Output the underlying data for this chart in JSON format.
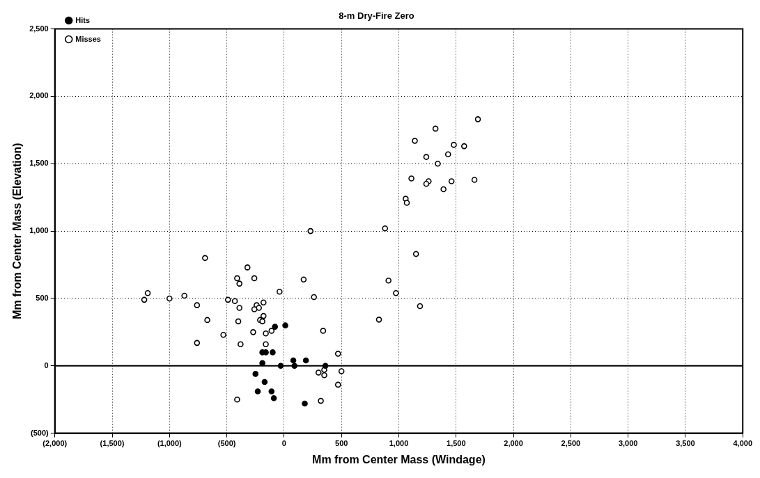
{
  "chart_data": {
    "type": "scatter",
    "title": "8-m Dry-Fire Zero",
    "xlabel": "Mm from Center Mass (Windage)",
    "ylabel": "Mm from Center Mass (Elevation)",
    "xlim": [
      -2000,
      4000
    ],
    "ylim": [
      -500,
      2500
    ],
    "xticks": [
      {
        "value": -2000,
        "label": "(2,000)"
      },
      {
        "value": -1500,
        "label": "(1,500)"
      },
      {
        "value": -1000,
        "label": "(1,000)"
      },
      {
        "value": -500,
        "label": "(500)"
      },
      0,
      500,
      {
        "value": 1000,
        "label": "1,000"
      },
      {
        "value": 1500,
        "label": "1,500"
      },
      {
        "value": 2000,
        "label": "2,000"
      },
      {
        "value": 2500,
        "label": "2,500"
      },
      {
        "value": 3000,
        "label": "3,000"
      },
      {
        "value": 3500,
        "label": "3,500"
      },
      {
        "value": 4000,
        "label": "4,000"
      }
    ],
    "yticks": [
      {
        "value": -500,
        "label": "(500)"
      },
      0,
      500,
      {
        "value": 1000,
        "label": "1,000"
      },
      {
        "value": 1500,
        "label": "1,500"
      },
      {
        "value": 2000,
        "label": "2,000"
      },
      {
        "value": 2500,
        "label": "2,500"
      }
    ],
    "grid": true,
    "legend": "top left",
    "marker": "circle",
    "ref_lines": [
      {
        "axis": "y",
        "value": 0,
        "color": "#000000",
        "line_style": "solid"
      }
    ],
    "series": [
      {
        "name": "Hits",
        "color": "#000000",
        "x": [
          -80,
          10,
          -190,
          -160,
          -100,
          -190,
          -30,
          80,
          90,
          190,
          360,
          -250,
          -170,
          -230,
          -110,
          -90,
          180
        ],
        "values": [
          290,
          300,
          100,
          100,
          100,
          20,
          0,
          40,
          0,
          40,
          0,
          -60,
          -120,
          -190,
          -190,
          -240,
          -280
        ]
      },
      {
        "name": "Misses",
        "color": "#000000",
        "x": [
          -690,
          -320,
          -410,
          -390,
          -260,
          170,
          -40,
          260,
          -1190,
          -1220,
          -1000,
          -870,
          -760,
          -490,
          -430,
          -390,
          -240,
          -220,
          -260,
          -180,
          -670,
          -400,
          -180,
          -210,
          -190,
          -760,
          -530,
          -380,
          -270,
          -160,
          -110,
          -160,
          340,
          470,
          300,
          350,
          350,
          500,
          470,
          320,
          -410,
          230,
          1690,
          1320,
          1140,
          1480,
          1570,
          1240,
          1430,
          1340,
          1260,
          1240,
          1110,
          1460,
          1660,
          1390,
          1060,
          1070,
          880,
          1150,
          910,
          975,
          1185,
          827
        ],
        "values": [
          800,
          730,
          650,
          610,
          650,
          640,
          550,
          510,
          540,
          490,
          500,
          520,
          450,
          490,
          480,
          430,
          450,
          430,
          420,
          470,
          340,
          330,
          370,
          340,
          330,
          170,
          230,
          160,
          250,
          240,
          260,
          160,
          260,
          90,
          -50,
          -30,
          -70,
          -40,
          -140,
          -260,
          -250,
          1000,
          1830,
          1760,
          1670,
          1640,
          1630,
          1550,
          1570,
          1500,
          1370,
          1350,
          1390,
          1370,
          1380,
          1310,
          1240,
          1210,
          1020,
          830,
          633,
          540,
          443,
          343
        ]
      }
    ]
  }
}
